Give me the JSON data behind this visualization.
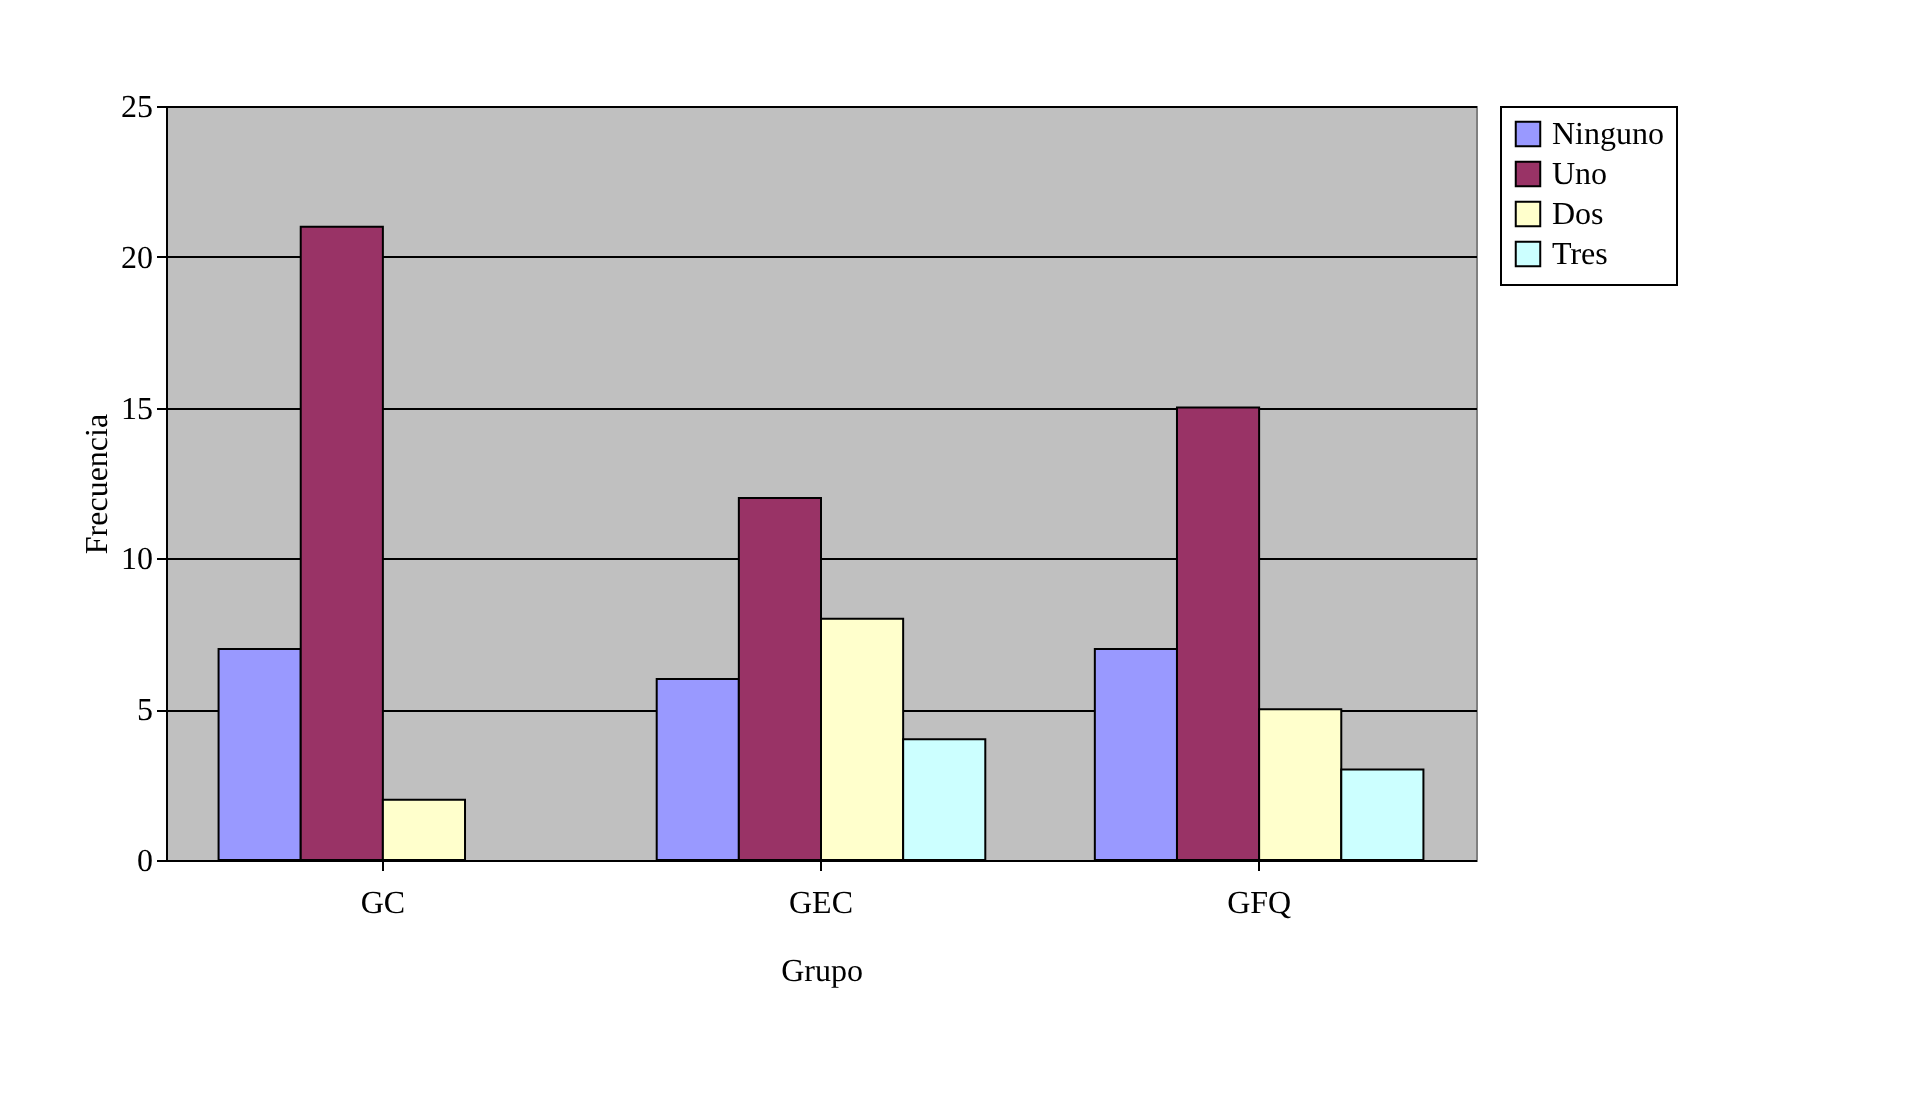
{
  "chart_data": {
    "type": "bar",
    "xlabel": "Grupo",
    "ylabel": "Frecuencia",
    "categories": [
      "GC",
      "GEC",
      "GFQ"
    ],
    "series": [
      {
        "name": "Ninguno",
        "color": "#9999ff",
        "values": [
          7,
          6,
          7
        ]
      },
      {
        "name": "Uno",
        "color": "#993366",
        "values": [
          21,
          12,
          15
        ]
      },
      {
        "name": "Dos",
        "color": "#ffffcc",
        "values": [
          2,
          8,
          5
        ]
      },
      {
        "name": "Tres",
        "color": "#ccffff",
        "values": [
          null,
          4,
          3
        ]
      }
    ],
    "ylim": [
      0,
      25
    ],
    "yticks": [
      0,
      5,
      10,
      15,
      20,
      25
    ],
    "grid": "y",
    "legend": "right"
  }
}
